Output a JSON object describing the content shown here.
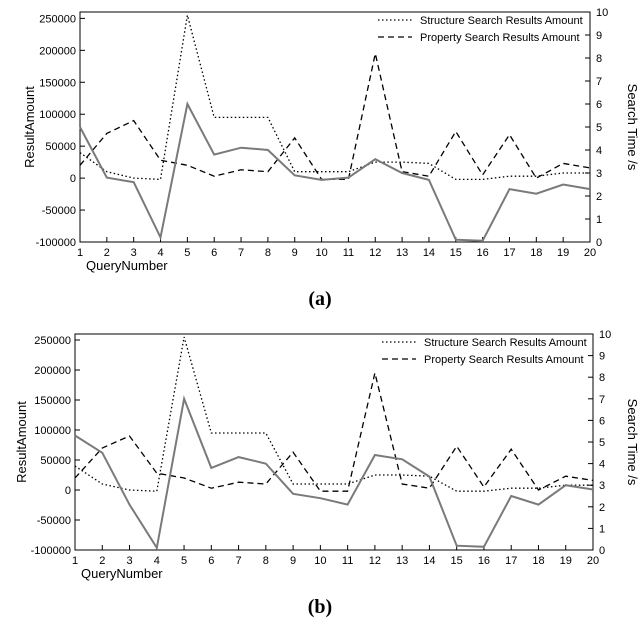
{
  "chart_data": [
    {
      "type": "line",
      "caption": "(a)",
      "x": [
        1,
        2,
        3,
        4,
        5,
        6,
        7,
        8,
        9,
        10,
        11,
        12,
        13,
        14,
        15,
        16,
        17,
        18,
        19,
        20
      ],
      "xlabel": "QueryNumber",
      "ylabel": "ResultAmount",
      "ylabel_right": "Search Time /s",
      "xlim": [
        1,
        20
      ],
      "ylim": [
        -100000,
        260000
      ],
      "ylim_right": [
        0,
        10
      ],
      "x_ticks": [
        "1",
        "2",
        "3",
        "4",
        "5",
        "6",
        "7",
        "8",
        "9",
        "10",
        "11",
        "12",
        "13",
        "14",
        "15",
        "16",
        "17",
        "18",
        "19",
        "20"
      ],
      "y_ticks": [
        "-100000",
        "-50000",
        "0",
        "50000",
        "100000",
        "150000",
        "200000",
        "250000"
      ],
      "y_ticks_right": [
        "0",
        "1",
        "2",
        "3",
        "4",
        "5",
        "6",
        "7",
        "8",
        "9",
        "10"
      ],
      "legend_position": "top-right",
      "series": [
        {
          "name": "Structure Search Results Amount",
          "style": "dotted",
          "axis": "left",
          "values": [
            40000,
            10000,
            0,
            -2000,
            255000,
            95000,
            95000,
            95000,
            10000,
            10000,
            10000,
            25000,
            25000,
            23000,
            -2000,
            -2000,
            3000,
            3000,
            8000,
            8000
          ]
        },
        {
          "name": "Property Search Results Amount",
          "style": "dashed",
          "axis": "left",
          "values": [
            20000,
            70000,
            90000,
            28000,
            20000,
            3000,
            13000,
            10000,
            63000,
            -2000,
            -2000,
            195000,
            10000,
            3000,
            73000,
            5000,
            68000,
            0,
            23000,
            16000
          ]
        },
        {
          "name": "",
          "style": "solid",
          "axis": "right",
          "values": [
            5.0,
            2.8,
            2.6,
            0.2,
            6.0,
            3.8,
            4.1,
            4.0,
            2.9,
            2.7,
            2.8,
            3.6,
            3.0,
            2.7,
            0.1,
            0.05,
            2.3,
            2.1,
            2.5,
            2.3
          ]
        }
      ]
    },
    {
      "type": "line",
      "caption": "(b)",
      "x": [
        1,
        2,
        3,
        4,
        5,
        6,
        7,
        8,
        9,
        10,
        11,
        12,
        13,
        14,
        15,
        16,
        17,
        18,
        19,
        20
      ],
      "xlabel": "QueryNumber",
      "ylabel": "ResultAmount",
      "ylabel_right": "Search Time /s",
      "xlim": [
        1,
        20
      ],
      "ylim": [
        -100000,
        260000
      ],
      "ylim_right": [
        0,
        10
      ],
      "x_ticks": [
        "1",
        "2",
        "3",
        "4",
        "5",
        "6",
        "7",
        "8",
        "9",
        "10",
        "11",
        "12",
        "13",
        "14",
        "15",
        "16",
        "17",
        "18",
        "19",
        "20"
      ],
      "y_ticks": [
        "-100000",
        "-50000",
        "0",
        "50000",
        "100000",
        "150000",
        "200000",
        "250000"
      ],
      "y_ticks_right": [
        "0",
        "1",
        "2",
        "3",
        "4",
        "5",
        "6",
        "7",
        "8",
        "9",
        "10"
      ],
      "legend_position": "top-right",
      "series": [
        {
          "name": "Structure Search Results Amount",
          "style": "dotted",
          "axis": "left",
          "values": [
            40000,
            10000,
            0,
            -2000,
            255000,
            95000,
            95000,
            95000,
            10000,
            10000,
            10000,
            25000,
            25000,
            23000,
            -2000,
            -2000,
            3000,
            3000,
            8000,
            8000
          ]
        },
        {
          "name": "Property Search Results Amount",
          "style": "dashed",
          "axis": "left",
          "values": [
            20000,
            70000,
            90000,
            28000,
            20000,
            3000,
            13000,
            10000,
            63000,
            -2000,
            -2000,
            195000,
            10000,
            3000,
            73000,
            5000,
            68000,
            0,
            23000,
            16000
          ]
        },
        {
          "name": "",
          "style": "solid",
          "axis": "right",
          "values": [
            5.3,
            4.5,
            2.1,
            0.1,
            7.0,
            3.8,
            4.3,
            4.0,
            2.6,
            2.4,
            2.1,
            4.4,
            4.2,
            3.4,
            0.2,
            0.15,
            2.5,
            2.1,
            3.0,
            2.8
          ]
        }
      ]
    }
  ]
}
